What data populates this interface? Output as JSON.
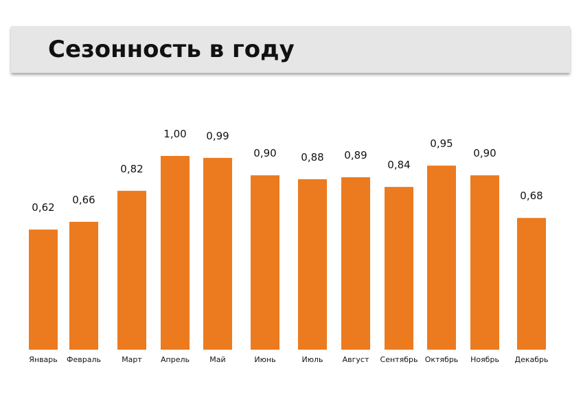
{
  "title": "Сезонность в году",
  "colors": {
    "bar": "#ec7a1f",
    "banner": "#e6e6e6",
    "text": "#111111"
  },
  "chart_data": {
    "type": "bar",
    "categories": [
      "Январь",
      "Февраль",
      "Март",
      "Апрель",
      "Май",
      "Июнь",
      "Июль",
      "Август",
      "Сентябрь",
      "Октябрь",
      "Ноябрь",
      "Декабрь"
    ],
    "values": [
      0.62,
      0.66,
      0.82,
      1.0,
      0.99,
      0.9,
      0.88,
      0.89,
      0.84,
      0.95,
      0.9,
      0.68
    ],
    "value_labels": [
      "0,62",
      "0,66",
      "0,82",
      "1,00",
      "0,99",
      "0,90",
      "0,88",
      "0,89",
      "0,84",
      "0,95",
      "0,90",
      "0,68"
    ],
    "grid": false,
    "legend": "none"
  }
}
